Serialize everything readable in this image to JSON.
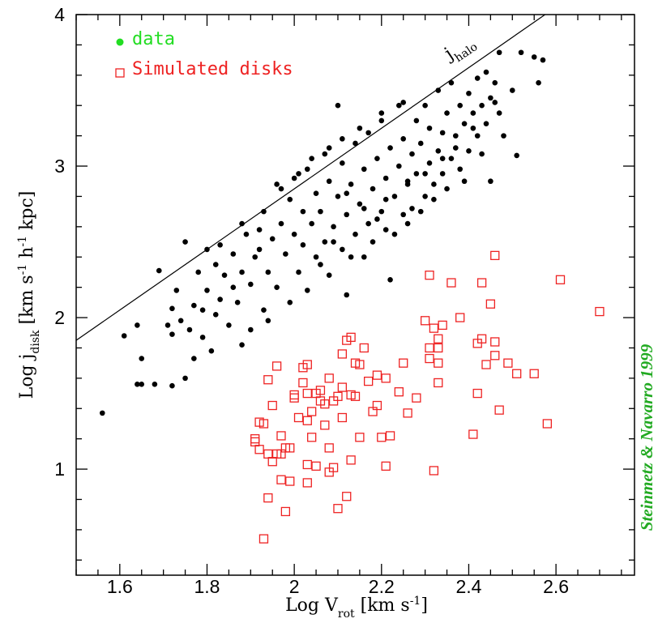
{
  "chart_data": {
    "type": "scatter",
    "xlabel": "Log V",
    "xlabel_sub": "rot",
    "xlabel_units": " [km s",
    "xlabel_units_sup": "-1",
    "xlabel_units_end": "]",
    "ylabel": "Log j",
    "ylabel_sub": "disk",
    "ylabel_units": " [km s",
    "ylabel_units_sup1": "-1",
    "ylabel_units_mid": " h",
    "ylabel_units_sup2": "-1",
    "ylabel_units_end": " kpc]",
    "xlim": [
      1.5,
      2.78
    ],
    "ylim": [
      0.3,
      4.0
    ],
    "xticks": [
      "1.6",
      "1.8",
      "2",
      "2.2",
      "2.4",
      "2.6"
    ],
    "xtick_values": [
      1.6,
      1.8,
      2.0,
      2.2,
      2.4,
      2.6
    ],
    "yticks": [
      "1",
      "2",
      "3",
      "4"
    ],
    "ytick_values": [
      1,
      2,
      3,
      4
    ],
    "annotation": {
      "text": "j",
      "sub": "halo"
    },
    "halo_line": {
      "x": [
        1.5,
        2.6
      ],
      "y": [
        1.85,
        4.05
      ]
    },
    "credit": "Steinmetz & Navarro 1999",
    "legend_placement": "top-left",
    "colors": {
      "data": "#22dd22",
      "simulated": "#ee2222",
      "credit": "#22aa22"
    },
    "series": [
      {
        "name": "data",
        "marker": "filled-circle",
        "color": "#000000",
        "points": [
          [
            1.56,
            1.37
          ],
          [
            1.61,
            1.88
          ],
          [
            1.64,
            1.95
          ],
          [
            1.65,
            1.73
          ],
          [
            1.64,
            1.56
          ],
          [
            1.65,
            1.56
          ],
          [
            1.68,
            1.56
          ],
          [
            1.69,
            2.31
          ],
          [
            1.71,
            1.95
          ],
          [
            1.72,
            1.89
          ],
          [
            1.72,
            1.55
          ],
          [
            1.72,
            2.06
          ],
          [
            1.73,
            2.18
          ],
          [
            1.74,
            1.98
          ],
          [
            1.75,
            2.5
          ],
          [
            1.75,
            1.6
          ],
          [
            1.76,
            1.92
          ],
          [
            1.77,
            1.73
          ],
          [
            1.77,
            2.08
          ],
          [
            1.78,
            2.3
          ],
          [
            1.79,
            1.87
          ],
          [
            1.8,
            2.18
          ],
          [
            1.8,
            2.45
          ],
          [
            1.81,
            1.78
          ],
          [
            1.82,
            2.02
          ],
          [
            1.82,
            2.35
          ],
          [
            1.83,
            2.12
          ],
          [
            1.84,
            2.28
          ],
          [
            1.85,
            1.95
          ],
          [
            1.86,
            2.42
          ],
          [
            1.87,
            2.1
          ],
          [
            1.88,
            2.3
          ],
          [
            1.88,
            1.82
          ],
          [
            1.89,
            2.55
          ],
          [
            1.9,
            2.22
          ],
          [
            1.9,
            1.92
          ],
          [
            1.91,
            2.4
          ],
          [
            1.92,
            2.58
          ],
          [
            1.93,
            2.05
          ],
          [
            1.93,
            2.7
          ],
          [
            1.94,
            2.3
          ],
          [
            1.94,
            1.98
          ],
          [
            1.95,
            2.52
          ],
          [
            1.96,
            2.88
          ],
          [
            1.96,
            2.2
          ],
          [
            1.97,
            2.62
          ],
          [
            1.98,
            2.42
          ],
          [
            1.99,
            2.78
          ],
          [
            1.99,
            2.1
          ],
          [
            2.0,
            2.55
          ],
          [
            2.0,
            2.92
          ],
          [
            2.01,
            2.3
          ],
          [
            2.02,
            2.7
          ],
          [
            2.02,
            2.48
          ],
          [
            2.03,
            2.98
          ],
          [
            2.03,
            2.18
          ],
          [
            2.04,
            2.62
          ],
          [
            2.05,
            2.82
          ],
          [
            2.05,
            2.4
          ],
          [
            2.06,
            2.7
          ],
          [
            2.07,
            3.08
          ],
          [
            2.07,
            2.5
          ],
          [
            2.08,
            2.9
          ],
          [
            2.08,
            2.28
          ],
          [
            2.09,
            2.6
          ],
          [
            2.1,
            2.8
          ],
          [
            2.1,
            3.4
          ],
          [
            2.11,
            2.45
          ],
          [
            2.11,
            3.02
          ],
          [
            2.12,
            2.68
          ],
          [
            2.12,
            2.15
          ],
          [
            2.13,
            2.88
          ],
          [
            2.14,
            2.55
          ],
          [
            2.14,
            3.15
          ],
          [
            2.15,
            2.75
          ],
          [
            2.16,
            2.4
          ],
          [
            2.16,
            2.98
          ],
          [
            2.17,
            2.62
          ],
          [
            2.17,
            3.22
          ],
          [
            2.18,
            2.85
          ],
          [
            2.18,
            2.5
          ],
          [
            2.19,
            3.05
          ],
          [
            2.2,
            2.7
          ],
          [
            2.2,
            3.3
          ],
          [
            2.21,
            2.92
          ],
          [
            2.21,
            2.58
          ],
          [
            2.22,
            3.12
          ],
          [
            2.22,
            2.25
          ],
          [
            2.23,
            2.8
          ],
          [
            2.24,
            3.0
          ],
          [
            2.24,
            3.4
          ],
          [
            2.25,
            2.68
          ],
          [
            2.25,
            3.18
          ],
          [
            2.26,
            2.9
          ],
          [
            2.27,
            3.08
          ],
          [
            2.27,
            2.72
          ],
          [
            2.28,
            3.3
          ],
          [
            2.28,
            2.95
          ],
          [
            2.29,
            3.15
          ],
          [
            2.3,
            2.8
          ],
          [
            2.3,
            3.4
          ],
          [
            2.31,
            3.02
          ],
          [
            2.31,
            3.25
          ],
          [
            2.32,
            2.88
          ],
          [
            2.33,
            3.1
          ],
          [
            2.33,
            3.5
          ],
          [
            2.34,
            3.22
          ],
          [
            2.34,
            2.95
          ],
          [
            2.35,
            3.35
          ],
          [
            2.36,
            3.05
          ],
          [
            2.36,
            3.55
          ],
          [
            2.37,
            3.2
          ],
          [
            2.38,
            3.4
          ],
          [
            2.38,
            2.98
          ],
          [
            2.39,
            3.28
          ],
          [
            2.4,
            3.1
          ],
          [
            2.4,
            3.48
          ],
          [
            2.41,
            3.35
          ],
          [
            2.42,
            3.2
          ],
          [
            2.42,
            3.58
          ],
          [
            2.43,
            3.4
          ],
          [
            2.44,
            3.28
          ],
          [
            2.44,
            3.62
          ],
          [
            2.45,
            2.9
          ],
          [
            2.45,
            3.45
          ],
          [
            2.46,
            3.55
          ],
          [
            2.47,
            3.75
          ],
          [
            2.47,
            3.35
          ],
          [
            2.48,
            3.2
          ],
          [
            2.5,
            3.5
          ],
          [
            2.51,
            3.07
          ],
          [
            2.52,
            3.75
          ],
          [
            2.55,
            3.72
          ],
          [
            2.56,
            3.55
          ],
          [
            2.57,
            3.7
          ],
          [
            2.06,
            2.35
          ],
          [
            2.09,
            2.5
          ],
          [
            2.13,
            2.4
          ],
          [
            2.19,
            2.65
          ],
          [
            2.23,
            2.55
          ],
          [
            2.26,
            2.62
          ],
          [
            2.29,
            2.7
          ],
          [
            2.32,
            2.78
          ],
          [
            2.35,
            2.85
          ],
          [
            2.39,
            2.9
          ],
          [
            1.97,
            2.85
          ],
          [
            2.01,
            2.95
          ],
          [
            2.04,
            3.05
          ],
          [
            2.08,
            3.12
          ],
          [
            2.11,
            3.18
          ],
          [
            2.15,
            3.25
          ],
          [
            2.2,
            3.35
          ],
          [
            2.25,
            3.42
          ],
          [
            1.92,
            2.45
          ],
          [
            1.86,
            2.2
          ],
          [
            1.83,
            2.48
          ],
          [
            1.79,
            2.05
          ],
          [
            1.88,
            2.62
          ],
          [
            2.12,
            2.82
          ],
          [
            2.16,
            2.72
          ],
          [
            2.21,
            2.78
          ],
          [
            2.26,
            2.88
          ],
          [
            2.3,
            2.95
          ],
          [
            2.34,
            3.05
          ],
          [
            2.37,
            3.12
          ],
          [
            2.41,
            3.25
          ],
          [
            2.43,
            3.08
          ],
          [
            2.46,
            3.42
          ]
        ]
      },
      {
        "name": "Simulated disks",
        "marker": "open-square",
        "color": "#ee2222",
        "points": [
          [
            1.91,
            1.2
          ],
          [
            1.91,
            1.18
          ],
          [
            1.92,
            1.31
          ],
          [
            1.92,
            1.13
          ],
          [
            1.93,
            0.54
          ],
          [
            1.93,
            1.3
          ],
          [
            1.94,
            1.59
          ],
          [
            1.94,
            0.81
          ],
          [
            1.94,
            1.1
          ],
          [
            1.95,
            1.42
          ],
          [
            1.95,
            1.05
          ],
          [
            1.96,
            1.68
          ],
          [
            1.96,
            1.1
          ],
          [
            1.97,
            1.1
          ],
          [
            1.97,
            0.93
          ],
          [
            1.97,
            1.22
          ],
          [
            1.98,
            1.14
          ],
          [
            1.98,
            0.72
          ],
          [
            1.99,
            1.14
          ],
          [
            1.99,
            0.92
          ],
          [
            2.0,
            1.47
          ],
          [
            2.0,
            1.49
          ],
          [
            2.01,
            1.34
          ],
          [
            2.02,
            1.67
          ],
          [
            2.02,
            1.57
          ],
          [
            2.03,
            1.69
          ],
          [
            2.03,
            1.5
          ],
          [
            2.03,
            1.32
          ],
          [
            2.03,
            1.03
          ],
          [
            2.03,
            0.91
          ],
          [
            2.04,
            1.38
          ],
          [
            2.04,
            1.21
          ],
          [
            2.05,
            1.5
          ],
          [
            2.05,
            1.02
          ],
          [
            2.06,
            1.52
          ],
          [
            2.06,
            1.45
          ],
          [
            2.07,
            1.43
          ],
          [
            2.07,
            1.29
          ],
          [
            2.08,
            1.6
          ],
          [
            2.08,
            1.14
          ],
          [
            2.08,
            0.98
          ],
          [
            2.09,
            1.45
          ],
          [
            2.09,
            1.01
          ],
          [
            2.1,
            1.48
          ],
          [
            2.1,
            0.74
          ],
          [
            2.11,
            1.76
          ],
          [
            2.11,
            1.54
          ],
          [
            2.11,
            1.34
          ],
          [
            2.12,
            1.85
          ],
          [
            2.12,
            0.82
          ],
          [
            2.13,
            1.87
          ],
          [
            2.13,
            1.49
          ],
          [
            2.13,
            1.06
          ],
          [
            2.14,
            1.7
          ],
          [
            2.14,
            1.48
          ],
          [
            2.15,
            1.69
          ],
          [
            2.15,
            1.21
          ],
          [
            2.16,
            1.8
          ],
          [
            2.17,
            1.58
          ],
          [
            2.18,
            1.38
          ],
          [
            2.19,
            1.62
          ],
          [
            2.19,
            1.42
          ],
          [
            2.2,
            1.21
          ],
          [
            2.21,
            1.6
          ],
          [
            2.21,
            1.02
          ],
          [
            2.22,
            1.22
          ],
          [
            2.24,
            1.51
          ],
          [
            2.25,
            1.7
          ],
          [
            2.26,
            1.37
          ],
          [
            2.28,
            1.47
          ],
          [
            2.3,
            1.98
          ],
          [
            2.31,
            2.28
          ],
          [
            2.31,
            1.8
          ],
          [
            2.31,
            1.73
          ],
          [
            2.32,
            0.99
          ],
          [
            2.32,
            1.93
          ],
          [
            2.33,
            1.86
          ],
          [
            2.33,
            1.8
          ],
          [
            2.33,
            1.7
          ],
          [
            2.33,
            1.57
          ],
          [
            2.34,
            1.95
          ],
          [
            2.36,
            2.23
          ],
          [
            2.38,
            2.0
          ],
          [
            2.41,
            1.23
          ],
          [
            2.42,
            1.83
          ],
          [
            2.42,
            1.5
          ],
          [
            2.43,
            2.23
          ],
          [
            2.43,
            1.86
          ],
          [
            2.44,
            1.69
          ],
          [
            2.45,
            2.09
          ],
          [
            2.46,
            2.41
          ],
          [
            2.46,
            1.84
          ],
          [
            2.46,
            1.75
          ],
          [
            2.47,
            1.39
          ],
          [
            2.49,
            1.7
          ],
          [
            2.51,
            1.63
          ],
          [
            2.55,
            1.63
          ],
          [
            2.58,
            1.3
          ],
          [
            2.61,
            2.25
          ],
          [
            2.7,
            2.04
          ]
        ]
      }
    ]
  }
}
